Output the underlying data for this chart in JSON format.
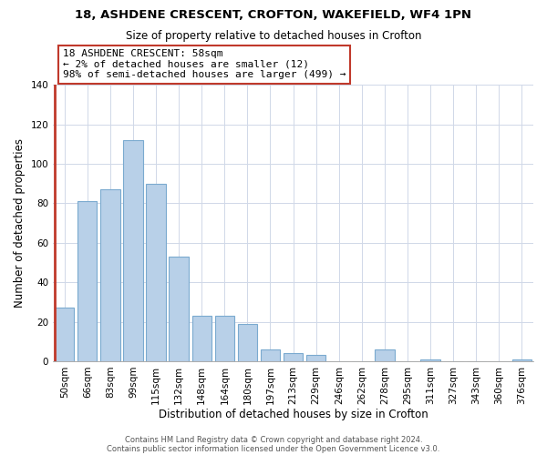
{
  "title": "18, ASHDENE CRESCENT, CROFTON, WAKEFIELD, WF4 1PN",
  "subtitle": "Size of property relative to detached houses in Crofton",
  "xlabel": "Distribution of detached houses by size in Crofton",
  "ylabel": "Number of detached properties",
  "bar_labels": [
    "50sqm",
    "66sqm",
    "83sqm",
    "99sqm",
    "115sqm",
    "132sqm",
    "148sqm",
    "164sqm",
    "180sqm",
    "197sqm",
    "213sqm",
    "229sqm",
    "246sqm",
    "262sqm",
    "278sqm",
    "295sqm",
    "311sqm",
    "327sqm",
    "343sqm",
    "360sqm",
    "376sqm"
  ],
  "bar_values": [
    27,
    81,
    87,
    112,
    90,
    53,
    23,
    23,
    19,
    6,
    4,
    3,
    0,
    0,
    6,
    0,
    1,
    0,
    0,
    0,
    1
  ],
  "bar_color": "#b8d0e8",
  "bar_edge_color": "#7aaacf",
  "highlight_line_color": "#c0392b",
  "highlight_index": 0,
  "ylim": [
    0,
    140
  ],
  "yticks": [
    0,
    20,
    40,
    60,
    80,
    100,
    120,
    140
  ],
  "annotation_title": "18 ASHDENE CRESCENT: 58sqm",
  "annotation_line1": "← 2% of detached houses are smaller (12)",
  "annotation_line2": "98% of semi-detached houses are larger (499) →",
  "footer_line1": "Contains HM Land Registry data © Crown copyright and database right 2024.",
  "footer_line2": "Contains public sector information licensed under the Open Government Licence v3.0.",
  "grid_color": "#d0d8e8",
  "background_color": "#ffffff",
  "title_fontsize": 9.5,
  "subtitle_fontsize": 8.5,
  "xlabel_fontsize": 8.5,
  "ylabel_fontsize": 8.5,
  "tick_fontsize": 7.5,
  "annotation_fontsize": 8.0,
  "footer_fontsize": 6.0
}
